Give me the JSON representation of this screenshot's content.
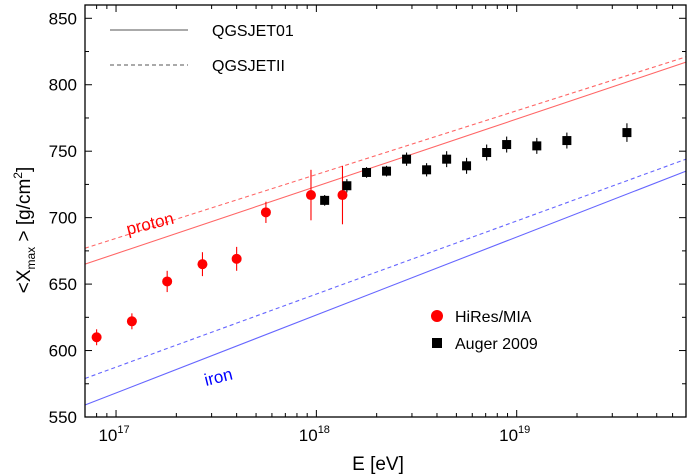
{
  "chart_data": {
    "type": "scatter",
    "title": "",
    "xlabel": "E [eV]",
    "ylabel_parts": {
      "pre": "<X",
      "sub": "max",
      "mid": " > [g/cm",
      "sup": "2",
      "post": "]"
    },
    "xscale": "log",
    "xlim": [
      7e+16,
      7e+19
    ],
    "ylim": [
      550,
      860
    ],
    "xtick_labels": [
      {
        "value": 1e+17,
        "base": "10",
        "exp": "17"
      },
      {
        "value": 1e+18,
        "base": "10",
        "exp": "18"
      },
      {
        "value": 1e+19,
        "base": "10",
        "exp": "19"
      }
    ],
    "yticks": [
      550,
      600,
      650,
      700,
      750,
      800,
      850
    ],
    "grid": false,
    "legend_top": {
      "placement": "top-left",
      "entries": [
        {
          "label": "QGSJET01",
          "style": "solid"
        },
        {
          "label": "QGSJETII",
          "style": "dashed"
        }
      ]
    },
    "legend_bottom": {
      "placement": "bottom-right",
      "entries": [
        {
          "label": "HiRes/MIA",
          "marker": "circle",
          "color": "#ff0000"
        },
        {
          "label": "Auger 2009",
          "marker": "square",
          "color": "#000000"
        }
      ]
    },
    "annotations": [
      {
        "text": "proton",
        "color": "#ff0000"
      },
      {
        "text": "iron",
        "color": "#0000ff"
      }
    ],
    "lines": [
      {
        "group": "proton",
        "model": "QGSJET01",
        "style": "solid",
        "color": "#ff6666",
        "x": [
          7e+16,
          7e+19
        ],
        "y": [
          665,
          817
        ]
      },
      {
        "group": "proton",
        "model": "QGSJETII",
        "style": "dashed",
        "color": "#ff6666",
        "x": [
          7e+16,
          7e+19
        ],
        "y": [
          677,
          821
        ]
      },
      {
        "group": "iron",
        "model": "QGSJET01",
        "style": "solid",
        "color": "#6666ff",
        "x": [
          7e+16,
          7e+19
        ],
        "y": [
          559,
          735
        ]
      },
      {
        "group": "iron",
        "model": "QGSJETII",
        "style": "dashed",
        "color": "#6666ff",
        "x": [
          7e+16,
          7e+19
        ],
        "y": [
          579,
          744
        ]
      }
    ],
    "series": [
      {
        "name": "HiRes/MIA",
        "marker": "circle",
        "color": "#ff0000",
        "points": [
          {
            "x": 8e+16,
            "y": 610,
            "err": 6
          },
          {
            "x": 1.2e+17,
            "y": 622,
            "err": 6
          },
          {
            "x": 1.8e+17,
            "y": 652,
            "err": 8
          },
          {
            "x": 2.7e+17,
            "y": 665,
            "err": 9
          },
          {
            "x": 4e+17,
            "y": 669,
            "err": 9
          },
          {
            "x": 5.6e+17,
            "y": 704,
            "err": 8
          },
          {
            "x": 9.4e+17,
            "y": 717,
            "err": 19
          },
          {
            "x": 1.35e+18,
            "y": 717,
            "err": 22
          }
        ]
      },
      {
        "name": "Auger 2009",
        "marker": "square",
        "color": "#000000",
        "points": [
          {
            "x": 1.1e+18,
            "y": 713,
            "err": 4
          },
          {
            "x": 1.42e+18,
            "y": 724,
            "err": 5
          },
          {
            "x": 1.78e+18,
            "y": 734,
            "err": 4
          },
          {
            "x": 2.24e+18,
            "y": 735,
            "err": 4
          },
          {
            "x": 2.82e+18,
            "y": 744,
            "err": 5
          },
          {
            "x": 3.55e+18,
            "y": 736,
            "err": 5
          },
          {
            "x": 4.47e+18,
            "y": 744,
            "err": 6
          },
          {
            "x": 5.62e+18,
            "y": 739,
            "err": 6
          },
          {
            "x": 7.08e+18,
            "y": 749,
            "err": 6
          },
          {
            "x": 8.91e+18,
            "y": 755,
            "err": 6
          },
          {
            "x": 1.26e+19,
            "y": 754,
            "err": 6
          },
          {
            "x": 1.78e+19,
            "y": 758,
            "err": 6
          },
          {
            "x": 3.55e+19,
            "y": 764,
            "err": 7
          }
        ]
      }
    ]
  }
}
